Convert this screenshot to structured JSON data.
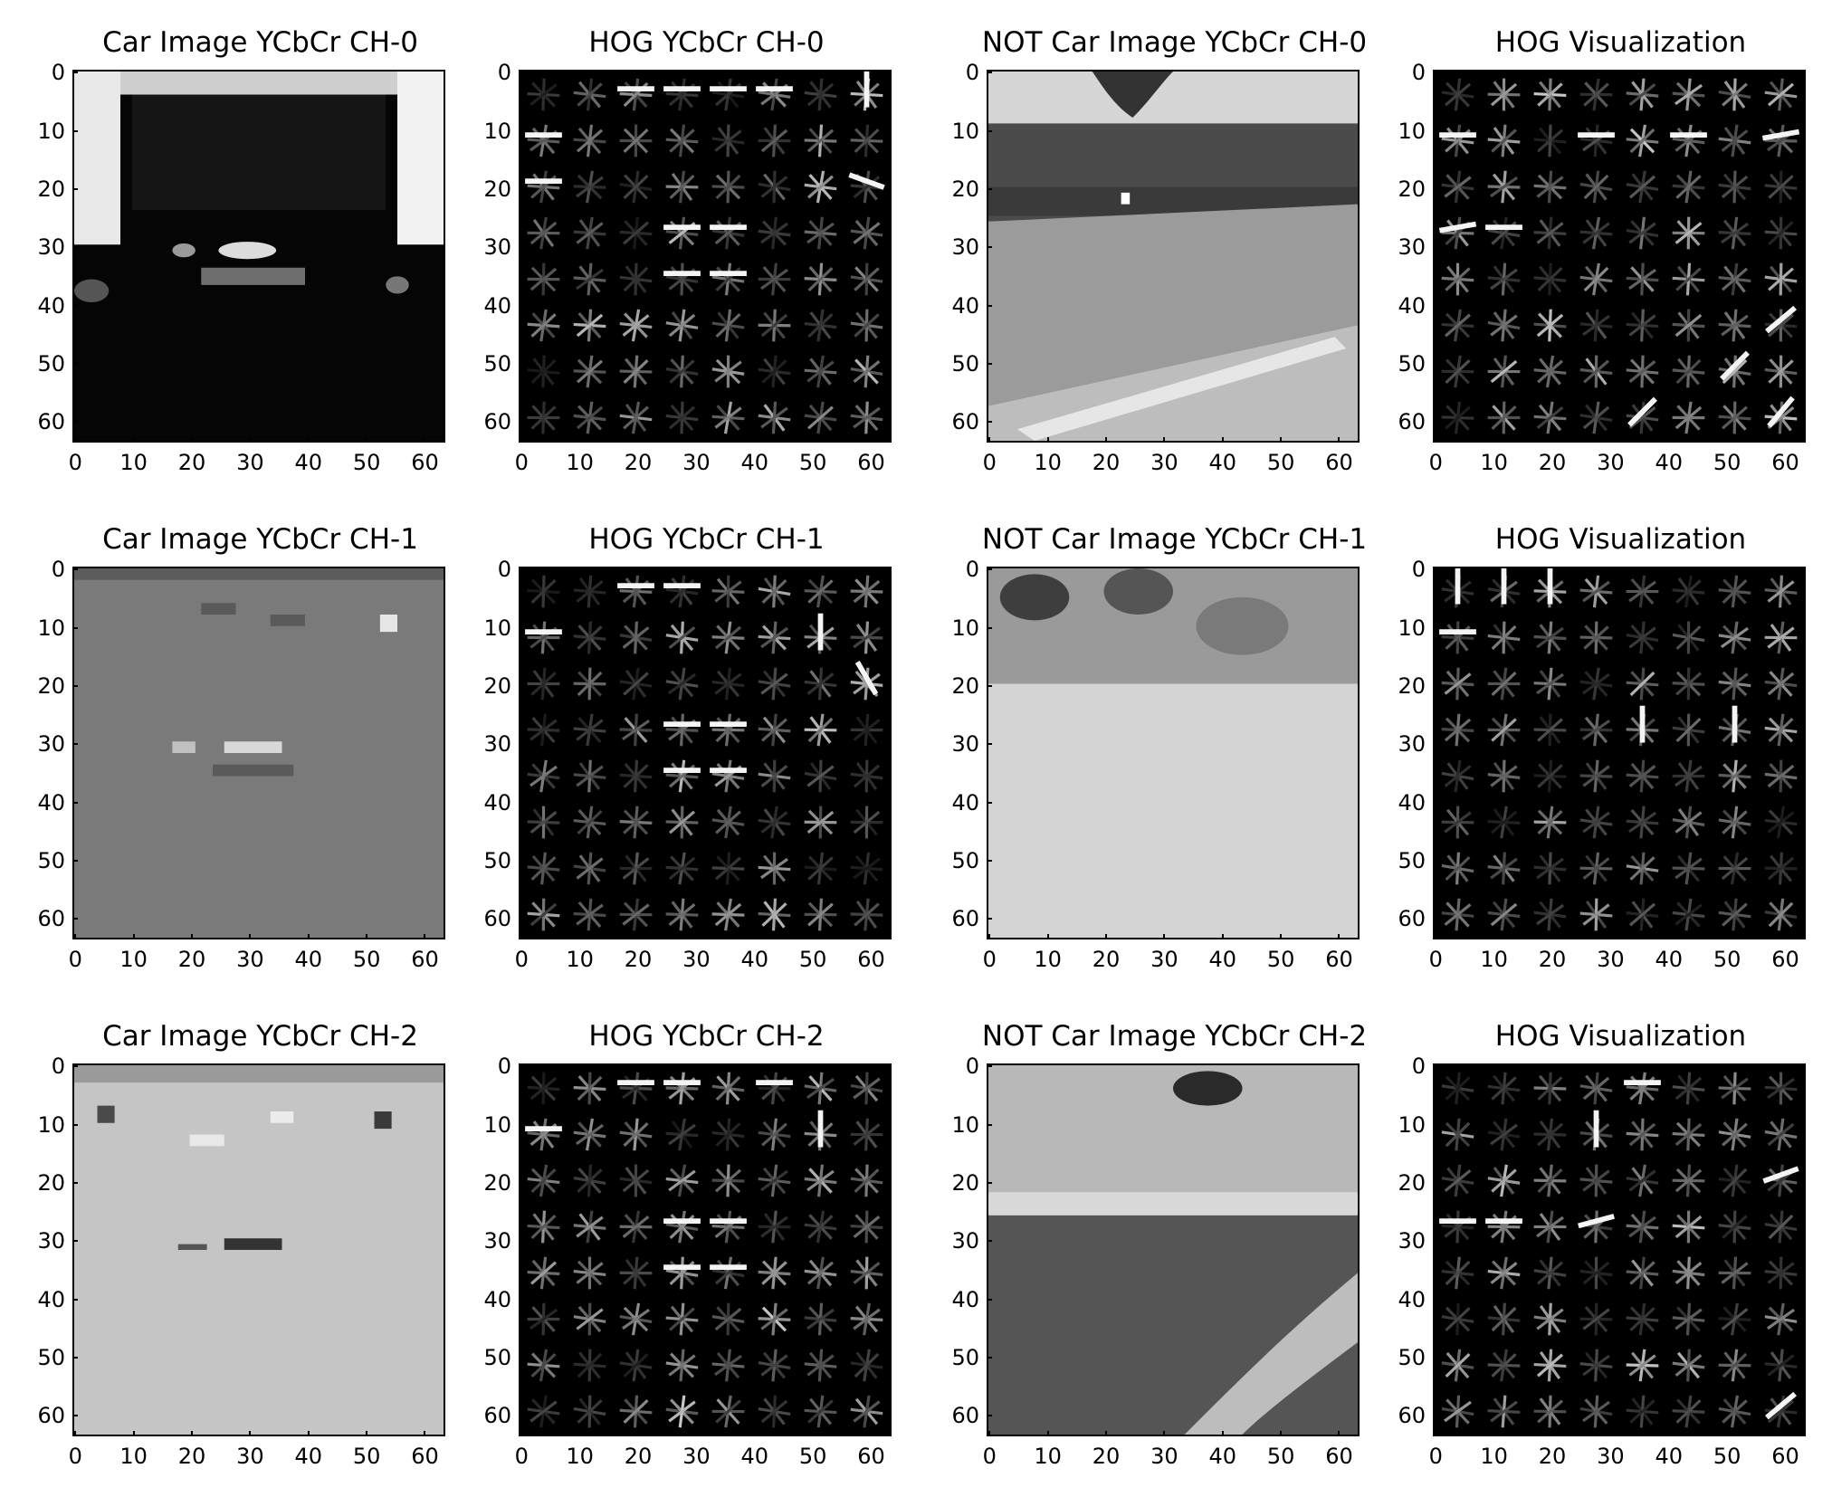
{
  "figure": {
    "panels": [
      {
        "title": "Car Image YCbCr CH-0",
        "kind": "car-ch0"
      },
      {
        "title": "HOG YCbCr CH-0",
        "kind": "hog-car-0"
      },
      {
        "title": "NOT Car Image YCbCr CH-0",
        "kind": "notcar-ch0"
      },
      {
        "title": "HOG Visualization",
        "kind": "hog-notcar-0"
      },
      {
        "title": "Car Image YCbCr CH-1",
        "kind": "car-ch1"
      },
      {
        "title": "HOG YCbCr CH-1",
        "kind": "hog-car-1"
      },
      {
        "title": "NOT Car Image YCbCr CH-1",
        "kind": "notcar-ch1"
      },
      {
        "title": "HOG Visualization",
        "kind": "hog-notcar-1"
      },
      {
        "title": "Car Image YCbCr CH-2",
        "kind": "car-ch2"
      },
      {
        "title": "HOG YCbCr CH-2",
        "kind": "hog-car-2"
      },
      {
        "title": "NOT Car Image YCbCr CH-2",
        "kind": "notcar-ch2"
      },
      {
        "title": "HOG Visualization",
        "kind": "hog-notcar-2"
      }
    ],
    "x_ticks": [
      "0",
      "10",
      "20",
      "30",
      "40",
      "50",
      "60"
    ],
    "y_ticks": [
      "0",
      "10",
      "20",
      "30",
      "40",
      "50",
      "60"
    ],
    "image_size": 64
  }
}
